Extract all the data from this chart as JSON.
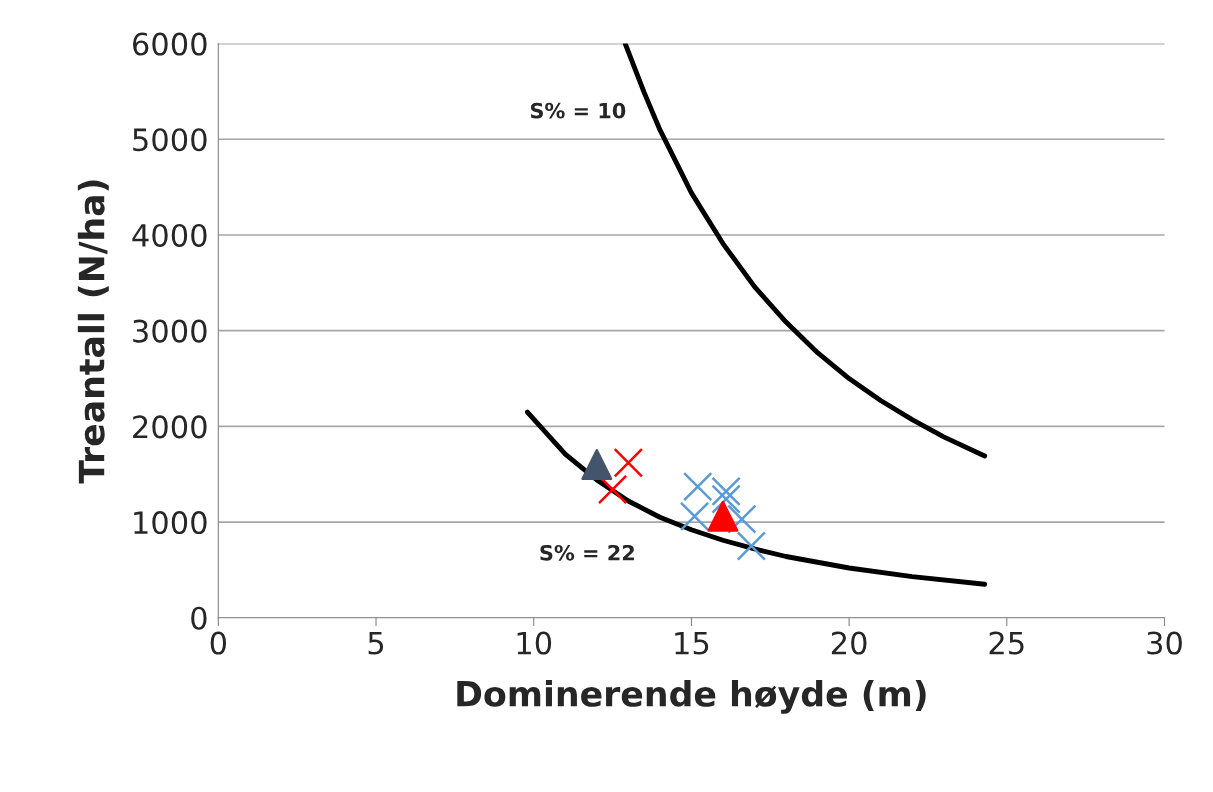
{
  "chart_data": {
    "type": "scatter",
    "xlabel": "Dominerende høyde (m)",
    "ylabel": "Treantall (N/ha)",
    "xlim": [
      0,
      30
    ],
    "xticks": [
      0,
      5,
      10,
      15,
      20,
      25,
      30
    ],
    "ylim": [
      0,
      6000
    ],
    "yticks": [
      0,
      1000,
      2000,
      3000,
      4000,
      5000,
      6000
    ],
    "grid": "y",
    "legend": false,
    "series": [
      {
        "type": "line",
        "color": "#000000",
        "marker": "none",
        "x": [
          12.9,
          13.5,
          14,
          15,
          16,
          17,
          18,
          19,
          20,
          21,
          22,
          23,
          24.3
        ],
        "values": [
          6000,
          5490,
          5100,
          4440,
          3910,
          3460,
          3090,
          2770,
          2500,
          2270,
          2070,
          1890,
          1690
        ]
      },
      {
        "type": "line",
        "color": "#000000",
        "marker": "none",
        "x": [
          9.8,
          11,
          12,
          13,
          14,
          15,
          16,
          17,
          18,
          20,
          22,
          24.3
        ],
        "values": [
          2150,
          1710,
          1440,
          1220,
          1050,
          920,
          810,
          720,
          640,
          520,
          430,
          350
        ]
      },
      {
        "color": "#5b9bd5",
        "marker": "cross",
        "x": [
          15.2,
          15.1,
          16.1,
          16.1,
          16.6,
          16.9
        ],
        "values": [
          1370,
          1060,
          1320,
          1240,
          1030,
          750
        ]
      },
      {
        "color": "#ff0000",
        "marker": "cross",
        "x": [
          13.0,
          12.5
        ],
        "values": [
          1620,
          1340
        ]
      },
      {
        "color": "#44546a",
        "marker": "triangle",
        "x": [
          12.0
        ],
        "values": [
          1600
        ]
      },
      {
        "color": "#ff0000",
        "marker": "triangle",
        "x": [
          16.0
        ],
        "values": [
          1060
        ]
      }
    ],
    "annotations": [
      "S% = 10",
      "S% = 22"
    ]
  }
}
